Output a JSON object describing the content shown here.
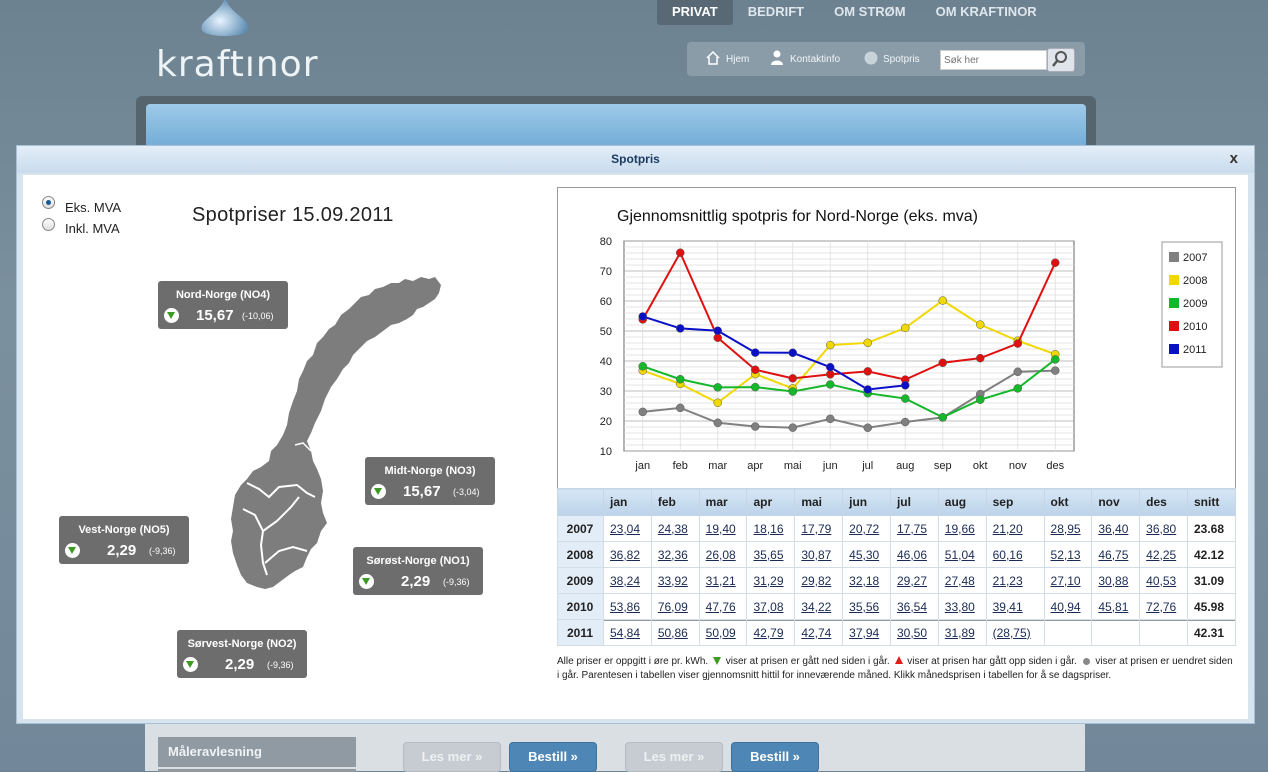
{
  "site": {
    "logo_text": "kraftınor",
    "nav": [
      "PRIVAT",
      "BEDRIFT",
      "OM STRØM",
      "OM KRAFTINOR"
    ],
    "nav_active": 0,
    "tools": {
      "home": "Hjem",
      "contact": "Kontaktinfo",
      "spot": "Spotpris"
    },
    "search_placeholder": "Søk her",
    "left_menu_item": "Måleravlesning",
    "read_more": "Les mer »",
    "order": "Bestill »"
  },
  "modal": {
    "title": "Spotpris",
    "close": "x",
    "vat": {
      "excl": "Eks. MVA",
      "incl": "Inkl. MVA",
      "selected": "excl"
    },
    "heading": "Spotpriser 15.09.2011",
    "regions": [
      {
        "name": "Nord-Norge (NO4)",
        "value": "15,67",
        "change": "(-10,06)",
        "trend": "down"
      },
      {
        "name": "Midt-Norge (NO3)",
        "value": "15,67",
        "change": "(-3,04)",
        "trend": "down"
      },
      {
        "name": "Vest-Norge (NO5)",
        "value": "2,29",
        "change": "(-9,36)",
        "trend": "down"
      },
      {
        "name": "Sørøst-Norge (NO1)",
        "value": "2,29",
        "change": "(-9,36)",
        "trend": "down"
      },
      {
        "name": "Sørvest-Norge (NO2)",
        "value": "2,29",
        "change": "(-9,36)",
        "trend": "down"
      }
    ],
    "table": {
      "headers": [
        "",
        "jan",
        "feb",
        "mar",
        "apr",
        "mai",
        "jun",
        "jul",
        "aug",
        "sep",
        "okt",
        "nov",
        "des",
        "snitt"
      ],
      "rows": [
        {
          "year": "2007",
          "values": [
            "23,04",
            "24,38",
            "19,40",
            "18,16",
            "17,79",
            "20,72",
            "17,75",
            "19,66",
            "21,20",
            "28,95",
            "36,40",
            "36,80"
          ],
          "avg": "23.68"
        },
        {
          "year": "2008",
          "values": [
            "36,82",
            "32,36",
            "26,08",
            "35,65",
            "30,87",
            "45,30",
            "46,06",
            "51,04",
            "60,16",
            "52,13",
            "46,75",
            "42,25"
          ],
          "avg": "42.12"
        },
        {
          "year": "2009",
          "values": [
            "38,24",
            "33,92",
            "31,21",
            "31,29",
            "29,82",
            "32,18",
            "29,27",
            "27,48",
            "21,23",
            "27,10",
            "30,88",
            "40,53"
          ],
          "avg": "31.09"
        },
        {
          "year": "2010",
          "values": [
            "53,86",
            "76,09",
            "47,76",
            "37,08",
            "34,22",
            "35,56",
            "36,54",
            "33,80",
            "39,41",
            "40,94",
            "45,81",
            "72,76"
          ],
          "avg": "45.98"
        },
        {
          "year": "2011",
          "values": [
            "54,84",
            "50,86",
            "50,09",
            "42,79",
            "42,74",
            "37,94",
            "30,50",
            "31,89",
            "(28,75)",
            "",
            "",
            ""
          ],
          "avg": "42.31"
        }
      ]
    },
    "note": {
      "p1": "Alle priser er oppgitt i øre pr. kWh.",
      "p2": "viser at prisen er gått ned siden i går.",
      "p3": "viser at prisen har gått opp siden i går.",
      "p4": "viser at prisen er uendret siden i går. Parentesen i tabellen viser gjennomsnitt hittil for inneværende måned. Klikk månedsprisen i tabellen for å se dagspriser."
    }
  },
  "chart_data": {
    "type": "line",
    "title": "Gjennomsnittlig spotpris for Nord-Norge (eks. mva)",
    "categories": [
      "jan",
      "feb",
      "mar",
      "apr",
      "mai",
      "jun",
      "jul",
      "aug",
      "sep",
      "okt",
      "nov",
      "des"
    ],
    "ylim": [
      10,
      80
    ],
    "yticks": [
      10,
      20,
      30,
      40,
      50,
      60,
      70,
      80
    ],
    "grid": true,
    "legend_position": "right",
    "series": [
      {
        "name": "2007",
        "color": "#808080",
        "values": [
          23.04,
          24.38,
          19.4,
          18.16,
          17.79,
          20.72,
          17.75,
          19.66,
          21.2,
          28.95,
          36.4,
          36.8
        ]
      },
      {
        "name": "2008",
        "color": "#f0d800",
        "values": [
          36.82,
          32.36,
          26.08,
          35.65,
          30.87,
          45.3,
          46.06,
          51.04,
          60.16,
          52.13,
          46.75,
          42.25
        ]
      },
      {
        "name": "2009",
        "color": "#15b82a",
        "values": [
          38.24,
          33.92,
          31.21,
          31.29,
          29.82,
          32.18,
          29.27,
          27.48,
          21.23,
          27.1,
          30.88,
          40.53
        ]
      },
      {
        "name": "2010",
        "color": "#e01010",
        "values": [
          53.86,
          76.09,
          47.76,
          37.08,
          34.22,
          35.56,
          36.54,
          33.8,
          39.41,
          40.94,
          45.81,
          72.76
        ]
      },
      {
        "name": "2011",
        "color": "#0a10c8",
        "values": [
          54.84,
          50.86,
          50.09,
          42.79,
          42.74,
          37.94,
          30.5,
          31.89,
          null,
          null,
          null,
          null
        ]
      }
    ]
  }
}
